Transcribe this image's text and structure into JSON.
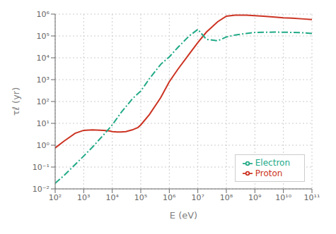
{
  "chart_data": {
    "type": "line",
    "xlabel": "E (eV)",
    "ylabel": "τℓ (yr)",
    "log": true,
    "grid": true,
    "legend": "lower right",
    "xlim": [
      100.0,
      100000000000.0
    ],
    "ylim": [
      0.01,
      1000000.0
    ],
    "xticks": [
      {
        "value": 100.0,
        "label": "10²"
      },
      {
        "value": 1000.0,
        "label": "10³"
      },
      {
        "value": 10000.0,
        "label": "10⁴"
      },
      {
        "value": 100000.0,
        "label": "10⁵"
      },
      {
        "value": 1000000.0,
        "label": "10⁶"
      },
      {
        "value": 10000000.0,
        "label": "10⁷"
      },
      {
        "value": 100000000.0,
        "label": "10⁸"
      },
      {
        "value": 1000000000.0,
        "label": "10⁹"
      },
      {
        "value": 10000000000.0,
        "label": "10¹⁰"
      },
      {
        "value": 100000000000.0,
        "label": "10¹¹"
      }
    ],
    "yticks": [
      {
        "value": 0.01,
        "label": "10⁻²"
      },
      {
        "value": 0.1,
        "label": "10⁻¹"
      },
      {
        "value": 1,
        "label": "10⁰"
      },
      {
        "value": 10,
        "label": "10¹"
      },
      {
        "value": 100.0,
        "label": "10²"
      },
      {
        "value": 1000.0,
        "label": "10³"
      },
      {
        "value": 10000.0,
        "label": "10⁴"
      },
      {
        "value": 100000.0,
        "label": "10⁵"
      },
      {
        "value": 1000000.0,
        "label": "10⁶"
      }
    ],
    "series": [
      {
        "name": "Proton",
        "color": "#cc3322",
        "line_style": "solid",
        "x": [
          100.0,
          200.0,
          500.0,
          1000.0,
          2000.0,
          5000.0,
          8000.0,
          10000.0,
          15000.0,
          20000.0,
          30000.0,
          50000.0,
          80000.0,
          100000.0,
          200000.0,
          500000.0,
          1000000.0,
          2000000.0,
          5000000.0,
          10000000.0,
          20000000.0,
          50000000.0,
          100000000.0,
          200000000.0,
          500000000.0,
          1000000000.0,
          2000000000.0,
          5000000000.0,
          10000000000.0,
          20000000000.0,
          50000000000.0,
          100000000000.0
        ],
        "values": [
          0.75,
          1.5,
          3.5,
          4.8,
          5.0,
          4.8,
          4.5,
          4.2,
          4.0,
          4.0,
          4.2,
          5.0,
          6.5,
          8.5,
          25,
          150,
          800,
          3000,
          15000,
          50000,
          150000,
          450000,
          800000,
          900000,
          900000,
          850000,
          800000,
          730000,
          680000,
          650000,
          600000,
          560000
        ]
      },
      {
        "name": "Electron",
        "color": "#22aa88",
        "line_style": "dashdot",
        "x": [
          100.0,
          200.0,
          500.0,
          1000.0,
          2000.0,
          5000.0,
          10000.0,
          20000.0,
          50000.0,
          100000.0,
          200000.0,
          500000.0,
          1000000.0,
          2000000.0,
          5000000.0,
          10000000.0,
          20000000.0,
          50000000.0,
          100000000.0,
          200000000.0,
          500000000.0,
          1000000000.0,
          2000000000.0,
          5000000000.0,
          10000000000.0,
          20000000000.0,
          50000000000.0,
          100000000000.0
        ],
        "values": [
          0.018,
          0.04,
          0.13,
          0.32,
          0.8,
          3.0,
          8.5,
          30,
          130,
          300,
          1100,
          5000,
          11000,
          30000,
          100000,
          200000,
          70000,
          60000,
          90000,
          110000,
          130000,
          145000,
          148000,
          150000,
          148000,
          145000,
          140000,
          130000
        ]
      }
    ]
  }
}
